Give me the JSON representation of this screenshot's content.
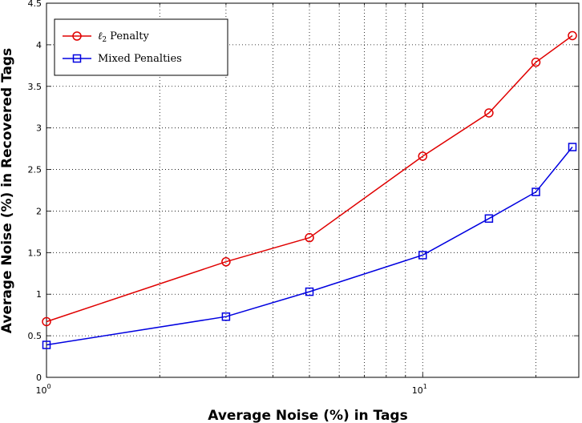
{
  "chart_data": {
    "type": "line",
    "xscale": "log",
    "xlabel": "Average Noise (%) in Tags",
    "ylabel": "Average Noise (%) in Recovered Tags",
    "xlim": [
      1,
      26
    ],
    "ylim": [
      0,
      4.5
    ],
    "grid": true,
    "legend_position": "top-left",
    "x_ticks": [
      {
        "base": "10",
        "exp": "0",
        "value": 1
      },
      {
        "base": "10",
        "exp": "1",
        "value": 10
      }
    ],
    "y_ticks": [
      "0",
      "0.5",
      "1",
      "1.5",
      "2",
      "2.5",
      "3",
      "3.5",
      "4",
      "4.5"
    ],
    "x": [
      1,
      3,
      5,
      10,
      15,
      20,
      25
    ],
    "series": [
      {
        "name": "Penalty",
        "name_prefix": "ℓ",
        "name_sub": "2",
        "color": "#e00000",
        "marker": "circle",
        "values": [
          0.67,
          1.39,
          1.68,
          2.66,
          3.18,
          3.79,
          4.11
        ]
      },
      {
        "name": "Mixed Penalties",
        "color": "#0000e0",
        "marker": "square",
        "values": [
          0.39,
          0.73,
          1.03,
          1.47,
          1.91,
          2.23,
          2.77
        ]
      }
    ]
  }
}
